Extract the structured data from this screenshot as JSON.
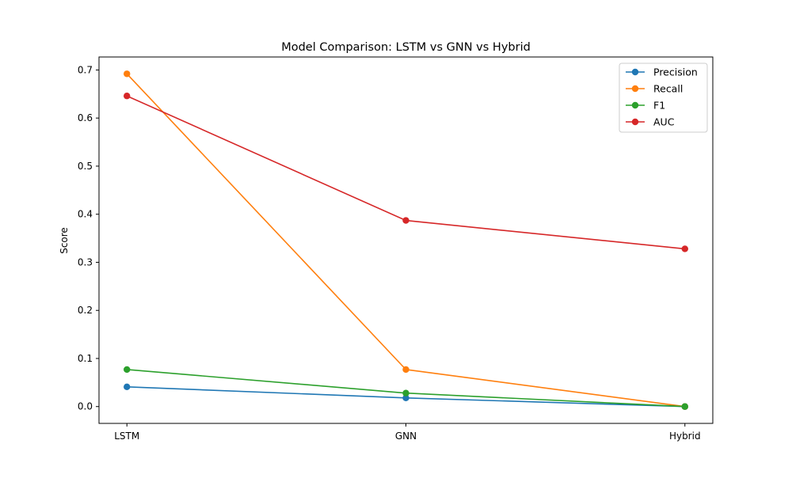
{
  "chart_data": {
    "type": "line",
    "title": "Model Comparison: LSTM vs GNN vs Hybrid",
    "xlabel": "",
    "ylabel": "Score",
    "categories": [
      "LSTM",
      "GNN",
      "Hybrid"
    ],
    "ylim": [
      -0.035,
      0.727
    ],
    "yticks": [
      0.0,
      0.1,
      0.2,
      0.3,
      0.4,
      0.5,
      0.6,
      0.7
    ],
    "ytick_labels": [
      "0.0",
      "0.1",
      "0.2",
      "0.3",
      "0.4",
      "0.5",
      "0.6",
      "0.7"
    ],
    "grid": false,
    "legend_position": "top-right",
    "series": [
      {
        "name": "Precision",
        "values": [
          0.041,
          0.018,
          0.0
        ],
        "color": "#1f77b4"
      },
      {
        "name": "Recall",
        "values": [
          0.692,
          0.077,
          0.0
        ],
        "color": "#ff7f0e"
      },
      {
        "name": "F1",
        "values": [
          0.077,
          0.028,
          0.0
        ],
        "color": "#2ca02c"
      },
      {
        "name": "AUC",
        "values": [
          0.646,
          0.387,
          0.328
        ],
        "color": "#d62728"
      }
    ]
  }
}
